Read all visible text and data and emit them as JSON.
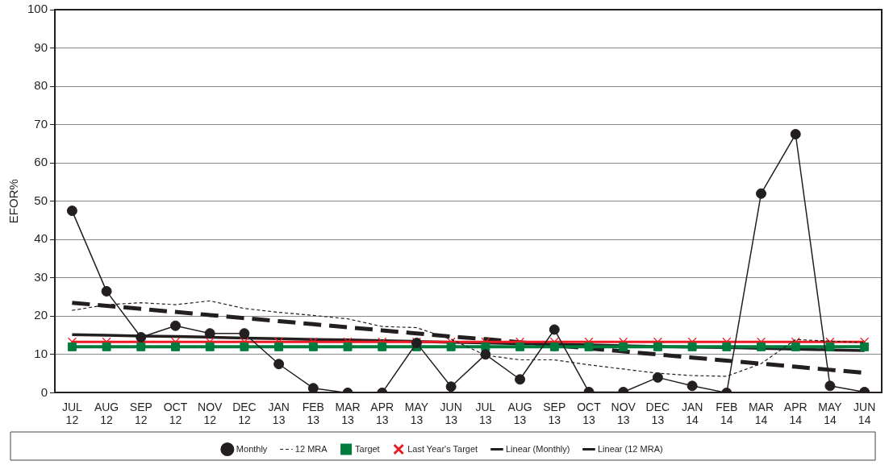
{
  "chart_data": {
    "type": "line",
    "ylabel": "EFOR%",
    "categories": [
      "JUL 12",
      "AUG 12",
      "SEP 12",
      "OCT 12",
      "NOV 12",
      "DEC 12",
      "JAN 13",
      "FEB 13",
      "MAR 13",
      "APR 13",
      "MAY 13",
      "JUN 13",
      "JUL 13",
      "AUG 13",
      "SEP 13",
      "OCT 13",
      "NOV 13",
      "DEC 13",
      "JAN 14",
      "FEB 14",
      "MAR 14",
      "APR 14",
      "MAY 14",
      "JUN 14"
    ],
    "series": [
      {
        "name": "Monthly",
        "color": "#231f20",
        "marker": "circle",
        "line_style": "solid",
        "values": [
          47.5,
          26.5,
          14.5,
          17.5,
          15.5,
          15.5,
          7.5,
          1.2,
          0,
          0,
          13,
          1.6,
          10,
          3.5,
          16.5,
          0.2,
          0.2,
          4,
          1.8,
          0,
          52,
          67.5,
          1.8,
          0.2
        ]
      },
      {
        "name": "12 MRA",
        "color": "#231f20",
        "marker": "none",
        "line_style": "dotted",
        "values": [
          21.5,
          23,
          23.5,
          23,
          24,
          22,
          21,
          20.2,
          19.3,
          17.3,
          17,
          14,
          9.8,
          8.6,
          8.6,
          7.3,
          6.2,
          5.1,
          4.5,
          4.3,
          7.6,
          13.9,
          13.5,
          13.1
        ]
      },
      {
        "name": "Target",
        "color": "#007a3d",
        "marker": "square",
        "line_style": "solid",
        "values": [
          12,
          12,
          12,
          12,
          12,
          12,
          12,
          12,
          12,
          12,
          12,
          12,
          12,
          12,
          12,
          12,
          12,
          12,
          12,
          12,
          12,
          12,
          12,
          12
        ]
      },
      {
        "name": "Last Year's Target",
        "color": "#ed1c24",
        "marker": "cross",
        "line_style": "solid",
        "values": [
          13.3,
          13.3,
          13.3,
          13.3,
          13.3,
          13.3,
          13.3,
          13.3,
          13.3,
          13.3,
          13.3,
          13.3,
          13.3,
          13.3,
          13.3,
          13.3,
          13.3,
          13.3,
          13.3,
          13.3,
          13.3,
          13.3,
          13.3,
          13.3
        ]
      },
      {
        "name": "Linear (Monthly)",
        "color": "#231f20",
        "marker": "none",
        "line_style": "solid",
        "values": [
          15.2,
          15,
          14.8,
          14.7,
          14.5,
          14.3,
          14.1,
          13.9,
          13.8,
          13.6,
          13.4,
          13.2,
          13,
          12.8,
          12.7,
          12.5,
          12.3,
          12.1,
          11.9,
          11.8,
          11.6,
          11.4,
          11.2,
          11
        ]
      },
      {
        "name": "Linear (12 MRA)",
        "color": "#231f20",
        "marker": "none",
        "line_style": "dashed",
        "values": [
          23.5,
          22.7,
          21.9,
          21.1,
          20.3,
          19.5,
          18.7,
          17.9,
          17.1,
          16.3,
          15.5,
          14.7,
          14,
          13.2,
          12.4,
          11.6,
          10.8,
          10,
          9.2,
          8.4,
          7.6,
          6.8,
          6,
          5.2
        ]
      }
    ],
    "ylim": [
      0,
      100
    ],
    "yticks": [
      0,
      10,
      20,
      30,
      40,
      50,
      60,
      70,
      80,
      90,
      100
    ],
    "grid": "y",
    "legend": "bottom"
  }
}
